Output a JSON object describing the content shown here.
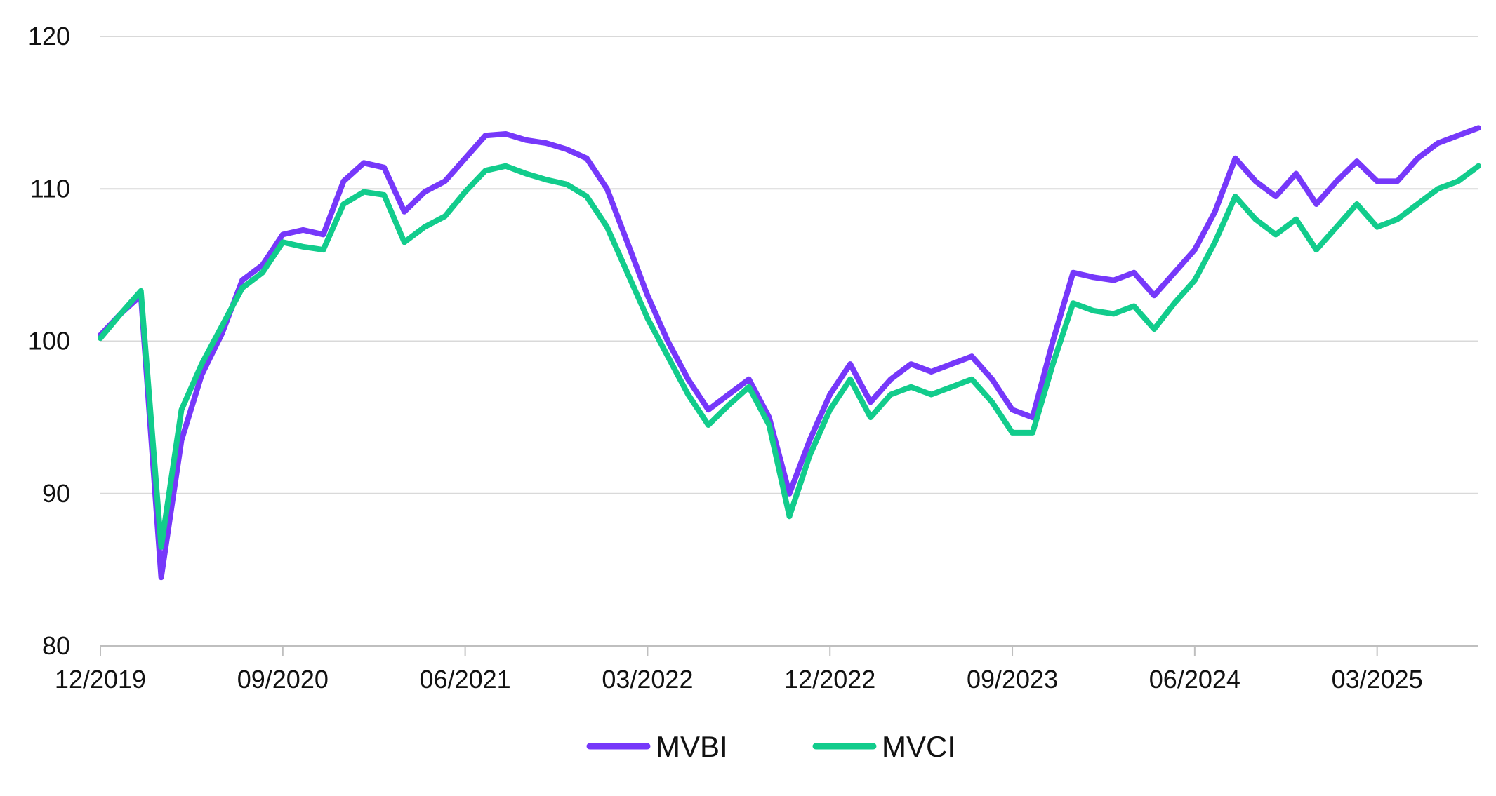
{
  "chart_data": {
    "type": "line",
    "title": "",
    "xlabel": "",
    "ylabel": "",
    "ylim": [
      80,
      120
    ],
    "y_ticks": [
      "120",
      "110",
      "100",
      "90",
      "80"
    ],
    "x_tick_labels": [
      "12/2019",
      "09/2020",
      "06/2021",
      "03/2022",
      "12/2022",
      "09/2023",
      "06/2024",
      "03/2025"
    ],
    "x_range": [
      "2019-12",
      "2025-08"
    ],
    "grid": "horizontal",
    "legend": "bottom-center",
    "series": [
      {
        "name": "MVBI",
        "color": "#7638fa",
        "points": [
          [
            "2019-12",
            100.4
          ],
          [
            "2020-01",
            101.8
          ],
          [
            "2020-02",
            103.0
          ],
          [
            "2020-03",
            84.5
          ],
          [
            "2020-04",
            93.5
          ],
          [
            "2020-05",
            97.8
          ],
          [
            "2020-06",
            100.5
          ],
          [
            "2020-07",
            104.0
          ],
          [
            "2020-08",
            105.0
          ],
          [
            "2020-09",
            107.0
          ],
          [
            "2020-10",
            107.3
          ],
          [
            "2020-11",
            107.0
          ],
          [
            "2020-12",
            110.5
          ],
          [
            "2021-01",
            111.7
          ],
          [
            "2021-02",
            111.4
          ],
          [
            "2021-03",
            108.5
          ],
          [
            "2021-04",
            109.8
          ],
          [
            "2021-05",
            110.5
          ],
          [
            "2021-06",
            112.0
          ],
          [
            "2021-07",
            113.5
          ],
          [
            "2021-08",
            113.6
          ],
          [
            "2021-09",
            113.2
          ],
          [
            "2021-10",
            113.0
          ],
          [
            "2021-11",
            112.6
          ],
          [
            "2021-12",
            112.0
          ],
          [
            "2022-01",
            110.0
          ],
          [
            "2022-02",
            106.5
          ],
          [
            "2022-03",
            103.0
          ],
          [
            "2022-04",
            100.0
          ],
          [
            "2022-05",
            97.5
          ],
          [
            "2022-06",
            95.5
          ],
          [
            "2022-07",
            96.5
          ],
          [
            "2022-08",
            97.5
          ],
          [
            "2022-09",
            95.0
          ],
          [
            "2022-10",
            90.0
          ],
          [
            "2022-11",
            93.5
          ],
          [
            "2022-12",
            96.5
          ],
          [
            "2023-01",
            98.5
          ],
          [
            "2023-02",
            96.0
          ],
          [
            "2023-03",
            97.5
          ],
          [
            "2023-04",
            98.5
          ],
          [
            "2023-05",
            98.0
          ],
          [
            "2023-06",
            98.5
          ],
          [
            "2023-07",
            99.0
          ],
          [
            "2023-08",
            97.5
          ],
          [
            "2023-09",
            95.5
          ],
          [
            "2023-10",
            95.0
          ],
          [
            "2023-11",
            100.0
          ],
          [
            "2023-12",
            104.5
          ],
          [
            "2024-01",
            104.2
          ],
          [
            "2024-02",
            104.0
          ],
          [
            "2024-03",
            104.5
          ],
          [
            "2024-04",
            103.0
          ],
          [
            "2024-05",
            104.5
          ],
          [
            "2024-06",
            106.0
          ],
          [
            "2024-07",
            108.5
          ],
          [
            "2024-08",
            112.0
          ],
          [
            "2024-09",
            110.5
          ],
          [
            "2024-10",
            109.5
          ],
          [
            "2024-11",
            111.0
          ],
          [
            "2024-12",
            109.0
          ],
          [
            "2025-01",
            110.5
          ],
          [
            "2025-02",
            111.8
          ],
          [
            "2025-03",
            110.5
          ],
          [
            "2025-04",
            110.5
          ],
          [
            "2025-05",
            112.0
          ],
          [
            "2025-06",
            113.0
          ],
          [
            "2025-07",
            113.5
          ],
          [
            "2025-08",
            114.0
          ]
        ]
      },
      {
        "name": "MVCI",
        "color": "#12cc8c",
        "points": [
          [
            "2019-12",
            100.2
          ],
          [
            "2020-01",
            101.8
          ],
          [
            "2020-02",
            103.3
          ],
          [
            "2020-03",
            86.5
          ],
          [
            "2020-04",
            95.5
          ],
          [
            "2020-05",
            98.5
          ],
          [
            "2020-06",
            101.0
          ],
          [
            "2020-07",
            103.5
          ],
          [
            "2020-08",
            104.5
          ],
          [
            "2020-09",
            106.5
          ],
          [
            "2020-10",
            106.2
          ],
          [
            "2020-11",
            106.0
          ],
          [
            "2020-12",
            109.0
          ],
          [
            "2021-01",
            109.8
          ],
          [
            "2021-02",
            109.6
          ],
          [
            "2021-03",
            106.5
          ],
          [
            "2021-04",
            107.5
          ],
          [
            "2021-05",
            108.2
          ],
          [
            "2021-06",
            109.8
          ],
          [
            "2021-07",
            111.2
          ],
          [
            "2021-08",
            111.5
          ],
          [
            "2021-09",
            111.0
          ],
          [
            "2021-10",
            110.6
          ],
          [
            "2021-11",
            110.3
          ],
          [
            "2021-12",
            109.5
          ],
          [
            "2022-01",
            107.5
          ],
          [
            "2022-02",
            104.5
          ],
          [
            "2022-03",
            101.5
          ],
          [
            "2022-04",
            99.0
          ],
          [
            "2022-05",
            96.5
          ],
          [
            "2022-06",
            94.5
          ],
          [
            "2022-07",
            95.8
          ],
          [
            "2022-08",
            97.0
          ],
          [
            "2022-09",
            94.5
          ],
          [
            "2022-10",
            88.5
          ],
          [
            "2022-11",
            92.5
          ],
          [
            "2022-12",
            95.5
          ],
          [
            "2023-01",
            97.5
          ],
          [
            "2023-02",
            95.0
          ],
          [
            "2023-03",
            96.5
          ],
          [
            "2023-04",
            97.0
          ],
          [
            "2023-05",
            96.5
          ],
          [
            "2023-06",
            97.0
          ],
          [
            "2023-07",
            97.5
          ],
          [
            "2023-08",
            96.0
          ],
          [
            "2023-09",
            94.0
          ],
          [
            "2023-10",
            94.0
          ],
          [
            "2023-11",
            98.5
          ],
          [
            "2023-12",
            102.5
          ],
          [
            "2024-01",
            102.0
          ],
          [
            "2024-02",
            101.8
          ],
          [
            "2024-03",
            102.3
          ],
          [
            "2024-04",
            100.8
          ],
          [
            "2024-05",
            102.5
          ],
          [
            "2024-06",
            104.0
          ],
          [
            "2024-07",
            106.5
          ],
          [
            "2024-08",
            109.5
          ],
          [
            "2024-09",
            108.0
          ],
          [
            "2024-10",
            107.0
          ],
          [
            "2024-11",
            108.0
          ],
          [
            "2024-12",
            106.0
          ],
          [
            "2025-01",
            107.5
          ],
          [
            "2025-02",
            109.0
          ],
          [
            "2025-03",
            107.5
          ],
          [
            "2025-04",
            108.0
          ],
          [
            "2025-05",
            109.0
          ],
          [
            "2025-06",
            110.0
          ],
          [
            "2025-07",
            110.5
          ],
          [
            "2025-08",
            111.5
          ]
        ]
      }
    ]
  }
}
